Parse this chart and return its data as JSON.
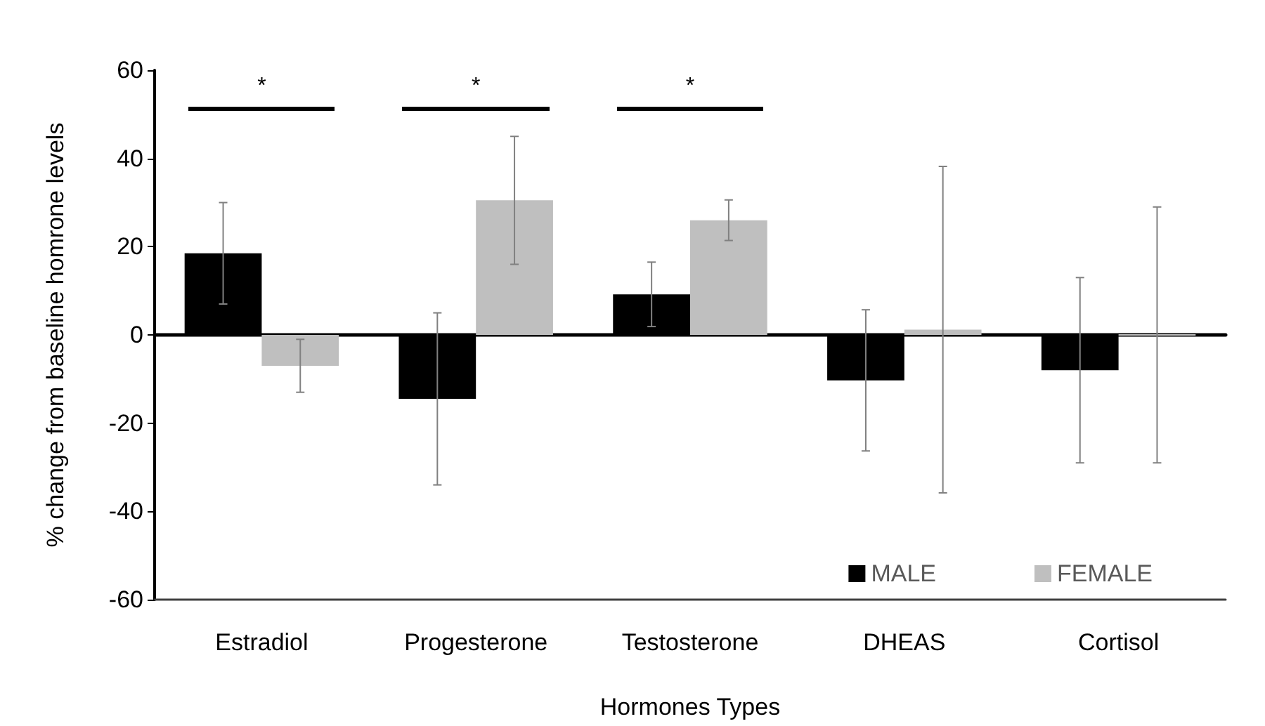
{
  "chart_data": {
    "type": "bar",
    "xlabel": "Hormones Types",
    "ylabel": "% change from baseline homrone levels",
    "categories": [
      "Estradiol",
      "Progesterone",
      "Testosterone",
      "DHEAS",
      "Cortisol"
    ],
    "series": [
      {
        "name": "MALE",
        "color": "#000000",
        "values": [
          18.5,
          -14.5,
          9.2,
          -10.3,
          -8
        ],
        "errors": [
          11.5,
          19.5,
          7.3,
          16,
          21
        ]
      },
      {
        "name": "FEMALE",
        "color": "#bfbfbf",
        "values": [
          -7,
          30.5,
          26,
          1.2,
          0
        ],
        "errors": [
          6,
          14.5,
          4.6,
          37,
          29
        ]
      }
    ],
    "ylim": [
      -60,
      60
    ],
    "yticks": [
      -60,
      -40,
      -20,
      0,
      20,
      40,
      60
    ],
    "annotations": [
      "*",
      "*",
      "*"
    ],
    "legend": "bottom right"
  }
}
